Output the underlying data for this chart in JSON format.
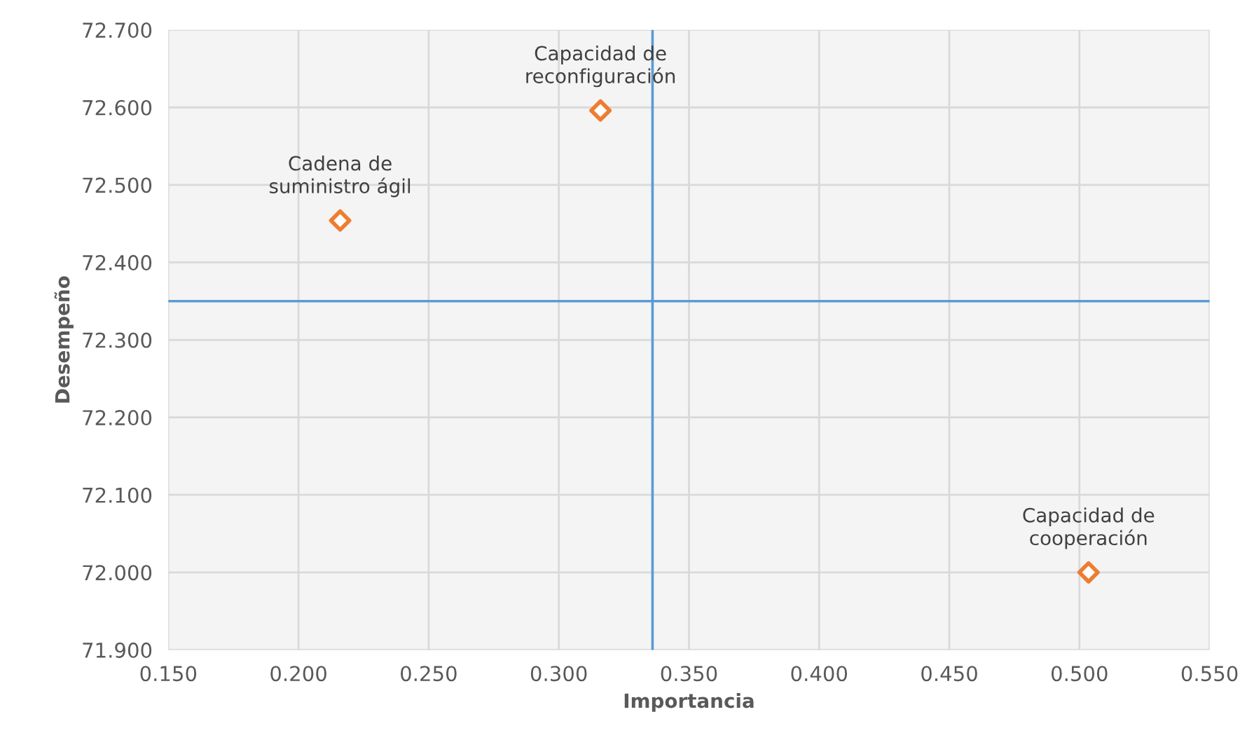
{
  "chart_data": {
    "type": "scatter",
    "xlabel": "Importancia",
    "ylabel": "Desempeño",
    "x": [
      0.216,
      0.316,
      0.5035
    ],
    "series": [
      {
        "color": "#ed7d31",
        "values": [
          72.454,
          72.596,
          72.0
        ]
      }
    ],
    "marker": "diamond",
    "annotations": [
      {
        "text": "Cadena de\nsuministro ágil",
        "x": 0.216,
        "y": 72.454
      },
      {
        "text": "Capacidad de\nreconfiguración",
        "x": 0.316,
        "y": 72.596
      },
      {
        "text": "Capacidad de\ncooperación",
        "x": 0.5035,
        "y": 72.0
      }
    ],
    "ref_lines": [
      {
        "axis": "x",
        "value": 0.336,
        "color": "#5b9bd5"
      },
      {
        "axis": "y",
        "value": 72.35,
        "color": "#5b9bd5"
      }
    ],
    "xlim": [
      0.15,
      0.55
    ],
    "xticks": [
      {
        "value": 0.15,
        "label": "0.150"
      },
      {
        "value": 0.2,
        "label": "0.200"
      },
      {
        "value": 0.25,
        "label": "0.250"
      },
      {
        "value": 0.3,
        "label": "0.300"
      },
      {
        "value": 0.35,
        "label": "0.350"
      },
      {
        "value": 0.4,
        "label": "0.400"
      },
      {
        "value": 0.45,
        "label": "0.450"
      },
      {
        "value": 0.5,
        "label": "0.500"
      },
      {
        "value": 0.55,
        "label": "0.550"
      }
    ],
    "ylim": [
      71.9,
      72.7
    ],
    "yticks": [
      {
        "value": 71.9,
        "label": "71.900"
      },
      {
        "value": 72.0,
        "label": "72.000"
      },
      {
        "value": 72.1,
        "label": "72.100"
      },
      {
        "value": 72.2,
        "label": "72.200"
      },
      {
        "value": 72.3,
        "label": "72.300"
      },
      {
        "value": 72.4,
        "label": "72.400"
      },
      {
        "value": 72.5,
        "label": "72.500"
      },
      {
        "value": 72.6,
        "label": "72.600"
      },
      {
        "value": 72.7,
        "label": "72.700"
      }
    ],
    "grid": true
  }
}
